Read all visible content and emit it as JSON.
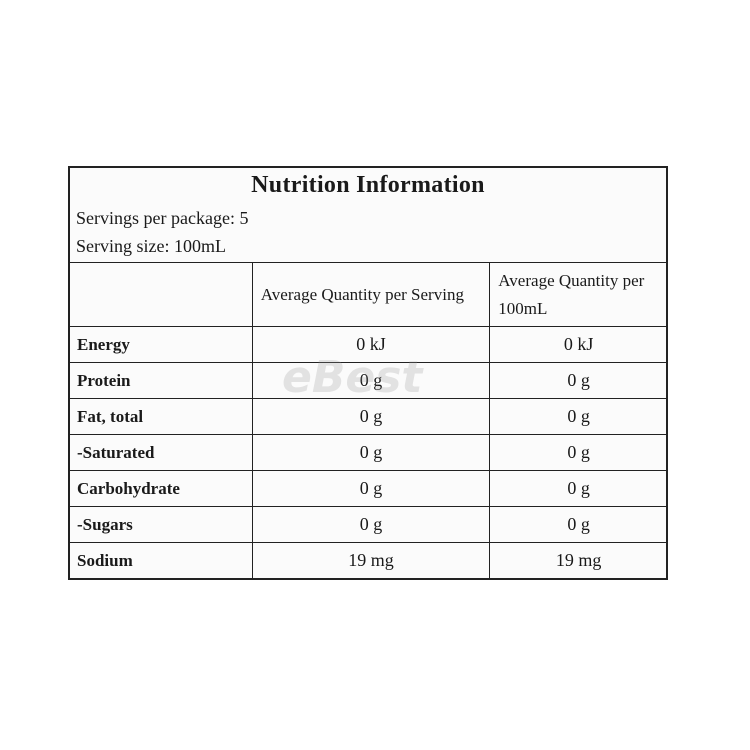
{
  "label": {
    "title": "Nutrition Information",
    "servings_per_package": "Servings per package: 5",
    "serving_size": "Serving size: 100mL",
    "headers": [
      "Average Quantity per Serving",
      "Average Quantity per 100mL"
    ],
    "rows": [
      [
        "Energy",
        "0 kJ",
        "0 kJ"
      ],
      [
        "Protein",
        "0 g",
        "0 g"
      ],
      [
        "Fat, total",
        "0 g",
        "0 g"
      ],
      [
        "-Saturated",
        "0 g",
        "0 g"
      ],
      [
        "Carbohydrate",
        "0 g",
        "0 g"
      ],
      [
        "-Sugars",
        "0 g",
        "0 g"
      ],
      [
        "Sodium",
        "19 mg",
        "19 mg"
      ]
    ]
  },
  "watermark": "eBest"
}
